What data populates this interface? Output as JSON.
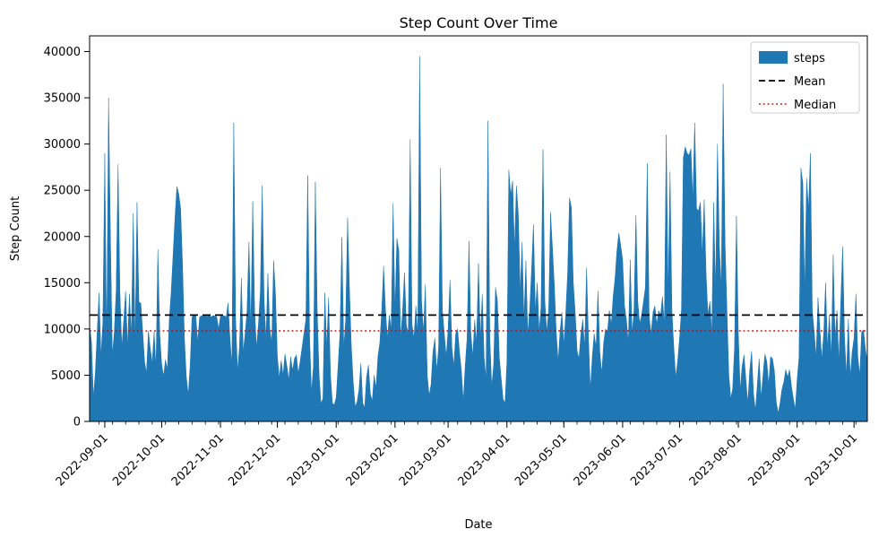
{
  "chart_data": {
    "type": "area",
    "title": "Step Count Over Time",
    "xlabel": "Date",
    "ylabel": "Step Count",
    "series_name": "steps",
    "start_date": "2022-08-24",
    "frequency": "daily",
    "ylim": [
      0,
      41700
    ],
    "y_ticks": [
      0,
      5000,
      10000,
      15000,
      20000,
      25000,
      30000,
      35000,
      40000
    ],
    "x_ticks": [
      {
        "label": "2022-09-01",
        "day": 8
      },
      {
        "label": "2022-10-01",
        "day": 38
      },
      {
        "label": "2022-11-01",
        "day": 69
      },
      {
        "label": "2022-12-01",
        "day": 99
      },
      {
        "label": "2023-01-01",
        "day": 130
      },
      {
        "label": "2023-02-01",
        "day": 161
      },
      {
        "label": "2023-03-01",
        "day": 189
      },
      {
        "label": "2023-04-01",
        "day": 220
      },
      {
        "label": "2023-05-01",
        "day": 250
      },
      {
        "label": "2023-06-01",
        "day": 281
      },
      {
        "label": "2023-07-01",
        "day": 311
      },
      {
        "label": "2023-08-01",
        "day": 342
      },
      {
        "label": "2023-09-01",
        "day": 373
      },
      {
        "label": "2023-10-01",
        "day": 403
      }
    ],
    "minor_tick_start_day": 5,
    "minor_tick_interval_days": 7,
    "mean": 11500,
    "median": 9800,
    "colors": {
      "steps": "#1f77b4",
      "mean": "#000000",
      "median": "#dd0000"
    },
    "legend": {
      "position": "upper right",
      "items": [
        {
          "label": "steps",
          "type": "patch"
        },
        {
          "label": "Mean",
          "type": "dashed-line"
        },
        {
          "label": "Median",
          "type": "dotted-line"
        }
      ]
    },
    "values": [
      10400,
      8600,
      2700,
      5200,
      9700,
      13900,
      7100,
      10800,
      29000,
      8100,
      35000,
      19800,
      7200,
      9600,
      14100,
      27800,
      13900,
      8000,
      11000,
      14100,
      8100,
      13800,
      9100,
      22500,
      8800,
      23700,
      12900,
      12800,
      9700,
      6400,
      5300,
      9800,
      7900,
      6300,
      9700,
      5800,
      18600,
      9400,
      6200,
      4900,
      6700,
      5600,
      11000,
      14000,
      18000,
      22000,
      25400,
      24600,
      23000,
      17000,
      9000,
      4800,
      2900,
      6000,
      11300,
      11500,
      11400,
      8600,
      11300,
      11450,
      11380,
      11420,
      11350,
      11480,
      11300,
      11450,
      11400,
      11350,
      10000,
      11420,
      11380,
      11450,
      11300,
      12800,
      9000,
      6000,
      32300,
      11000,
      5500,
      8000,
      15500,
      7500,
      9500,
      12000,
      19400,
      10000,
      23800,
      12000,
      8000,
      10500,
      14000,
      25500,
      13000,
      9000,
      16000,
      10000,
      8500,
      17400,
      13800,
      7000,
      4700,
      6600,
      5000,
      7300,
      6000,
      4500,
      7000,
      5500,
      6800,
      7200,
      5200,
      6500,
      8000,
      9500,
      11000,
      26600,
      9000,
      3200,
      6000,
      25900,
      12000,
      5000,
      1900,
      2500,
      13900,
      8000,
      13400,
      5000,
      2000,
      1800,
      2600,
      6000,
      9500,
      19900,
      8000,
      11000,
      22000,
      14300,
      8000,
      4200,
      1600,
      2100,
      3400,
      6300,
      2000,
      1500,
      4800,
      6100,
      3000,
      2200,
      5000,
      3600,
      7000,
      8500,
      12000,
      16800,
      12000,
      9000,
      11500,
      10000,
      23600,
      12000,
      19800,
      18500,
      9000,
      12000,
      16100,
      10400,
      9500,
      30500,
      10400,
      9000,
      12500,
      9300,
      39500,
      13000,
      9600,
      14800,
      5000,
      2800,
      4000,
      7500,
      9000,
      5500,
      8000,
      27400,
      12000,
      9500,
      7000,
      10000,
      15300,
      8000,
      6000,
      9500,
      10000,
      7500,
      5500,
      2200,
      6000,
      9000,
      19500,
      9500,
      7000,
      11000,
      8500,
      17100,
      9000,
      13800,
      6900,
      4600,
      32500,
      9000,
      3800,
      6100,
      14500,
      13000,
      6900,
      4600,
      2400,
      2000,
      6500,
      27200,
      24500,
      26000,
      18800,
      25500,
      22500,
      14000,
      19400,
      11000,
      17400,
      9500,
      12000,
      16500,
      21300,
      12000,
      15000,
      9700,
      12500,
      29400,
      13000,
      9700,
      12000,
      22600,
      18800,
      14800,
      9700,
      6500,
      9700,
      11800,
      8300,
      11700,
      16000,
      24200,
      23100,
      15000,
      11800,
      7600,
      6800,
      9500,
      11000,
      8000,
      16600,
      9000,
      3400,
      7000,
      9500,
      8000,
      14100,
      7500,
      5200,
      8500,
      10000,
      9700,
      12000,
      10500,
      13500,
      15500,
      18500,
      20400,
      19000,
      17500,
      12500,
      11000,
      8500,
      17500,
      9500,
      12000,
      22300,
      13000,
      10600,
      11500,
      13000,
      14500,
      27900,
      11300,
      9500,
      11800,
      12500,
      10500,
      12000,
      11500,
      13500,
      10500,
      31000,
      14000,
      27000,
      12000,
      8000,
      4800,
      6500,
      9000,
      12000,
      28500,
      29700,
      29000,
      28800,
      29500,
      24000,
      32300,
      23000,
      22800,
      23700,
      18000,
      24000,
      16000,
      11500,
      13000,
      9500,
      23700,
      14000,
      30000,
      19000,
      14500,
      36500,
      19400,
      12000,
      5000,
      2500,
      3500,
      8000,
      22200,
      9500,
      3400,
      6000,
      7200,
      4500,
      2000,
      5500,
      7600,
      3000,
      1200,
      4000,
      6800,
      2500,
      5000,
      7300,
      6500,
      4000,
      7000,
      6800,
      5500,
      2100,
      900,
      2000,
      3500,
      4300,
      5600,
      4800,
      5600,
      3800,
      2500,
      1300,
      4500,
      7000,
      27400,
      25800,
      14000,
      26300,
      23000,
      29000,
      12000,
      9700,
      7000,
      13400,
      10000,
      6800,
      9500,
      15000,
      8000,
      11500,
      7000,
      18000,
      9000,
      12000,
      6500,
      13000,
      18900,
      9000,
      5000,
      11100,
      4800,
      7500,
      9000,
      13800,
      7000,
      5000,
      9700,
      9900,
      7800,
      6500
    ]
  }
}
